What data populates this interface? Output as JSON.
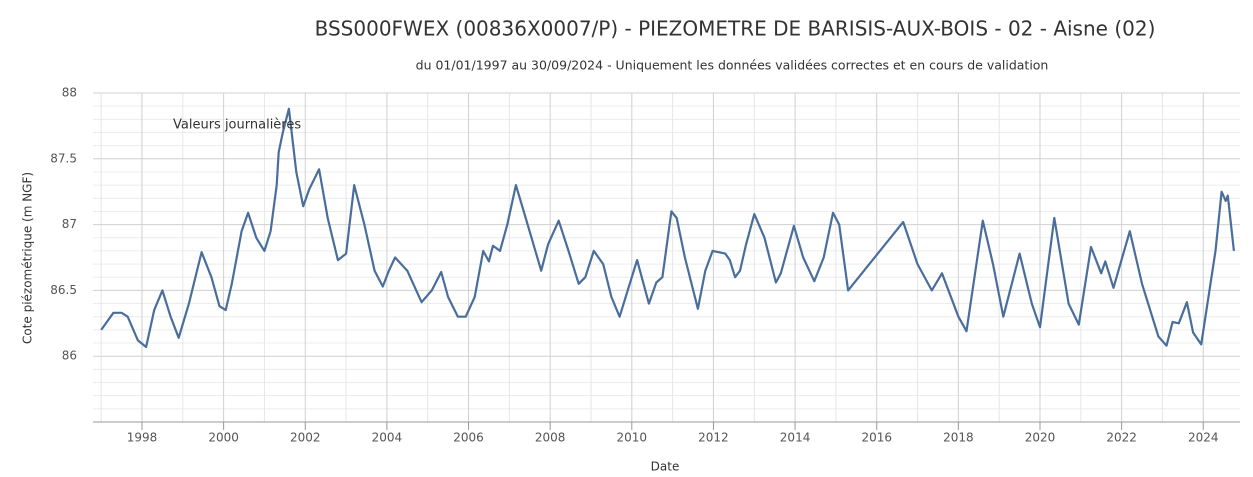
{
  "chart_data": {
    "type": "line",
    "title": "BSS000FWEX (00836X0007/P) - PIEZOMETRE DE BARISIS-AUX-BOIS - 02 - Aisne (02)",
    "subtitle": "du 01/01/1997 au 30/09/2024 - Uniquement les données validées correctes et en cours de validation",
    "x_label": "Date",
    "y_label": "Cote piézométrique (m NGF)",
    "x": [
      1997.0,
      1997.3,
      1997.5,
      1997.65,
      1997.9,
      1998.1,
      1998.3,
      1998.5,
      1998.7,
      1998.9,
      1999.15,
      1999.46,
      1999.7,
      1999.9,
      2000.05,
      2000.2,
      2000.44,
      2000.6,
      2000.8,
      2001.0,
      2001.15,
      2001.3,
      2001.35,
      2001.45,
      2001.6,
      2001.78,
      2001.95,
      2002.1,
      2002.34,
      2002.55,
      2002.8,
      2003.0,
      2003.2,
      2003.45,
      2003.7,
      2003.9,
      2004.05,
      2004.2,
      2004.5,
      2004.85,
      2005.1,
      2005.33,
      2005.5,
      2005.74,
      2005.93,
      2006.15,
      2006.36,
      2006.5,
      2006.6,
      2006.77,
      2006.95,
      2007.16,
      2007.4,
      2007.78,
      2007.95,
      2008.21,
      2008.45,
      2008.7,
      2008.86,
      2009.07,
      2009.3,
      2009.5,
      2009.7,
      2009.9,
      2010.13,
      2010.42,
      2010.6,
      2010.75,
      2010.97,
      2011.1,
      2011.3,
      2011.62,
      2011.8,
      2011.98,
      2012.29,
      2012.4,
      2012.53,
      2012.65,
      2012.8,
      2013.0,
      2013.25,
      2013.53,
      2013.65,
      2013.97,
      2014.2,
      2014.47,
      2014.7,
      2014.93,
      2015.08,
      2015.3,
      2016.65,
      2017.0,
      2017.35,
      2017.6,
      2018.0,
      2018.2,
      2018.6,
      2018.85,
      2019.1,
      2019.5,
      2019.8,
      2020.0,
      2020.35,
      2020.7,
      2020.95,
      2021.25,
      2021.5,
      2021.6,
      2021.8,
      2022.2,
      2022.5,
      2022.9,
      2023.1,
      2023.25,
      2023.4,
      2023.6,
      2023.75,
      2023.95,
      2024.3,
      2024.45,
      2024.55,
      2024.6,
      2024.75
    ],
    "series": [
      {
        "name": "Valeurs journalières",
        "color": "#4a6e9c",
        "values": [
          86.2,
          86.33,
          86.33,
          86.3,
          86.12,
          86.07,
          86.35,
          86.5,
          86.3,
          86.14,
          86.4,
          86.79,
          86.6,
          86.38,
          86.35,
          86.55,
          86.95,
          87.09,
          86.9,
          86.8,
          86.95,
          87.3,
          87.55,
          87.7,
          87.88,
          87.4,
          87.14,
          87.27,
          87.42,
          87.05,
          86.73,
          86.78,
          87.3,
          87.0,
          86.65,
          86.53,
          86.65,
          86.75,
          86.65,
          86.41,
          86.5,
          86.64,
          86.45,
          86.3,
          86.3,
          86.45,
          86.8,
          86.72,
          86.84,
          86.8,
          87.0,
          87.3,
          87.05,
          86.65,
          86.85,
          87.03,
          86.8,
          86.55,
          86.6,
          86.8,
          86.7,
          86.45,
          86.3,
          86.5,
          86.73,
          86.4,
          86.56,
          86.6,
          87.1,
          87.05,
          86.75,
          86.36,
          86.65,
          86.8,
          86.78,
          86.73,
          86.6,
          86.65,
          86.85,
          87.08,
          86.9,
          86.56,
          86.63,
          86.99,
          86.75,
          86.57,
          86.75,
          87.09,
          87.0,
          86.5,
          87.02,
          86.7,
          86.5,
          86.63,
          86.3,
          86.19,
          87.03,
          86.7,
          86.3,
          86.78,
          86.4,
          86.22,
          87.05,
          86.4,
          86.24,
          86.83,
          86.63,
          86.72,
          86.52,
          86.95,
          86.55,
          86.15,
          86.08,
          86.26,
          86.25,
          86.41,
          86.18,
          86.09,
          86.8,
          87.25,
          87.18,
          87.22,
          86.8
        ]
      }
    ],
    "xlim": [
      1996.8,
      2024.9
    ],
    "xticks": [
      1998,
      2000,
      2002,
      2004,
      2006,
      2008,
      2010,
      2012,
      2014,
      2016,
      2018,
      2020,
      2022,
      2024
    ],
    "minor_xticks": [
      1997,
      1999,
      2001,
      2003,
      2005,
      2007,
      2009,
      2011,
      2013,
      2015,
      2017,
      2019,
      2021,
      2023
    ],
    "ylim": [
      85.5,
      88
    ],
    "yticks": [
      86,
      86.5,
      87,
      87.5,
      88
    ],
    "minor_yticks": [
      85.6,
      85.7,
      85.8,
      85.9,
      86.1,
      86.2,
      86.3,
      86.4,
      86.6,
      86.7,
      86.8,
      86.9,
      87.1,
      87.2,
      87.3,
      87.4,
      87.6,
      87.7,
      87.8,
      87.9
    ],
    "grid": true
  }
}
